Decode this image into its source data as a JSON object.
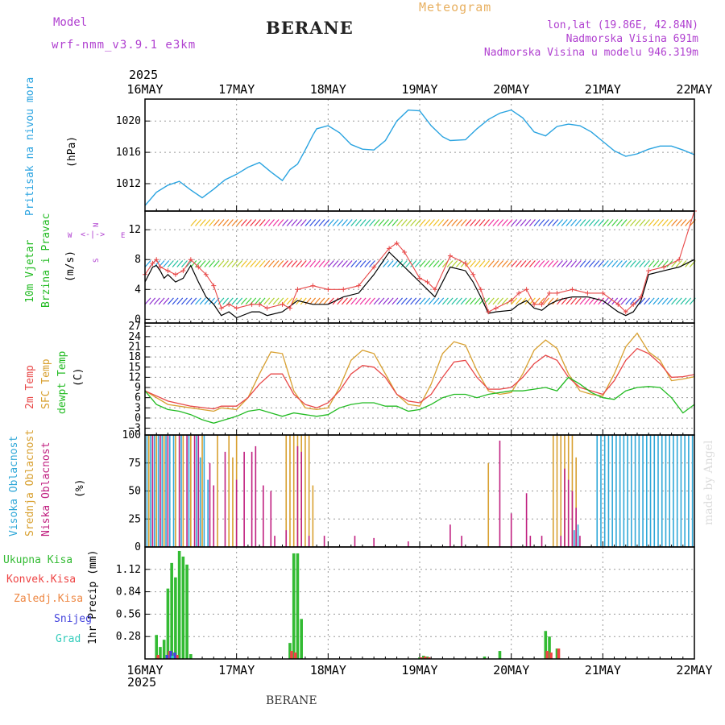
{
  "header": {
    "model_label": "Model",
    "model_name": "wrf-nmm_v3.9.1 e3km",
    "station": "BERANE",
    "meteogram": "Meteogram",
    "lonlat": "lon,lat (19.86E, 42.84N)",
    "altitude": "Nadmorska Visina 691m",
    "model_altitude": "Nadmorska Visina u modelu 946.319m",
    "year": "2025",
    "watermark": "made by Angel",
    "footer_station": "BERANE"
  },
  "colors": {
    "pressure": "#29a3e0",
    "wind_label": "#22bb22",
    "purple": "#b040d0",
    "temp2m": "#e84848",
    "sfc": "#d8a030",
    "dew": "#22bb22",
    "high": "#30a8d8",
    "mid": "#d8a030",
    "low": "#c02080",
    "precip_total": "#33bb33",
    "precip_conv": "#ee4444",
    "precip_frozen": "#ee8844",
    "precip_snow": "#4444dd",
    "precip_hail": "#33ccbb"
  },
  "x_axis": {
    "days": [
      "16MAY",
      "17MAY",
      "18MAY",
      "19MAY",
      "20MAY",
      "21MAY",
      "22MAY"
    ],
    "range_hours": [
      0,
      144
    ]
  },
  "panels": {
    "pressure": {
      "label": "Pritisak na nivou mora",
      "unit": "(hPa)"
    },
    "wind": {
      "label1": "10m Vjetar",
      "label2": "Brzina i Pravac",
      "unit": "(m/s)",
      "compass_n": "N",
      "compass_w": "W",
      "compass_e": "E",
      "compass_s": "S"
    },
    "temp": {
      "label_2m": "2m Temp",
      "label_sfc": "SFC Temp",
      "label_dew": "dewpt Temp",
      "unit": "(C)"
    },
    "cloud": {
      "label_high": "Visoka Oblacnost",
      "label_mid": "Srednja Oblacnost",
      "label_low": "Niska Oblacnost",
      "unit": "(%)"
    },
    "precip": {
      "legend": [
        "Ukupna Kisa",
        "Konvek.Kisa",
        "Zaledj.Kisa",
        "Snijeg",
        "Grad"
      ],
      "unit": "1hr Precip (mm)"
    }
  },
  "chart_data": [
    {
      "type": "line",
      "title": "Pritisak na nivou mora",
      "ylabel": "(hPa)",
      "ylim": [
        1008.5,
        1022.8
      ],
      "yticks": [
        1012,
        1016,
        1020
      ],
      "series": [
        {
          "name": "MSLP",
          "x": [
            0,
            3,
            6,
            9,
            12,
            15,
            18,
            21,
            24,
            27,
            30,
            33,
            36,
            38,
            40,
            42,
            44,
            45,
            48,
            51,
            54,
            57,
            60,
            63,
            66,
            69,
            72,
            75,
            78,
            80,
            84,
            87,
            90,
            93,
            96,
            99,
            102,
            105,
            108,
            111,
            114,
            117,
            120,
            123,
            126,
            129,
            132,
            135,
            138,
            141,
            144
          ],
          "values": [
            1009.2,
            1010.9,
            1011.8,
            1012.3,
            1011.2,
            1010.2,
            1011.3,
            1012.5,
            1013.2,
            1014.1,
            1014.7,
            1013.5,
            1012.4,
            1013.8,
            1014.5,
            1016.3,
            1018.2,
            1019.0,
            1019.4,
            1018.5,
            1017.0,
            1016.4,
            1016.3,
            1017.5,
            1020.0,
            1021.4,
            1021.3,
            1019.4,
            1018.0,
            1017.5,
            1017.6,
            1019.0,
            1020.2,
            1021.0,
            1021.4,
            1020.4,
            1018.6,
            1018.1,
            1019.3,
            1019.6,
            1019.4,
            1018.6,
            1017.4,
            1016.2,
            1015.5,
            1015.8,
            1016.4,
            1016.8,
            1016.8,
            1016.3,
            1015.7
          ]
        }
      ]
    },
    {
      "type": "line",
      "title": "10m Vjetar Brzina i Pravac",
      "ylabel": "(m/s)",
      "ylim": [
        -0.5,
        14.5
      ],
      "yticks": [
        0,
        4,
        8,
        12
      ],
      "series": [
        {
          "name": "Wind speed (black)",
          "x": [
            0,
            2,
            3,
            4,
            5,
            6,
            8,
            10,
            12,
            14,
            16,
            18,
            20,
            22,
            24,
            28,
            30,
            32,
            36,
            40,
            44,
            48,
            52,
            56,
            60,
            64,
            66,
            68,
            72,
            74,
            76,
            80,
            84,
            86,
            88,
            90,
            92,
            96,
            98,
            100,
            102,
            104,
            106,
            108,
            110,
            112,
            116,
            120,
            124,
            126,
            128,
            130,
            132,
            136,
            140,
            144
          ],
          "values": [
            5,
            7,
            7.2,
            6.5,
            5.5,
            6,
            5,
            5.5,
            7.2,
            5,
            3,
            2,
            0.5,
            1,
            0.2,
            1,
            1,
            0.5,
            1,
            2.5,
            2,
            2,
            3,
            3.5,
            6,
            9,
            8,
            7,
            5,
            4,
            3,
            7,
            6.5,
            5,
            3,
            0.8,
            1,
            1.2,
            2,
            2.5,
            1.5,
            1.2,
            2,
            2.5,
            2.8,
            3,
            3,
            2.5,
            1,
            0.5,
            1,
            2.5,
            6,
            6.5,
            7,
            8
          ]
        },
        {
          "name": "Gust (red)",
          "x": [
            0,
            2,
            3,
            4,
            6,
            8,
            10,
            12,
            14,
            16,
            18,
            20,
            22,
            24,
            28,
            30,
            32,
            36,
            38,
            40,
            44,
            48,
            52,
            56,
            60,
            64,
            66,
            68,
            72,
            74,
            76,
            80,
            84,
            86,
            88,
            90,
            92,
            96,
            98,
            100,
            102,
            104,
            106,
            108,
            112,
            116,
            120,
            124,
            126,
            128,
            130,
            132,
            136,
            140,
            144
          ],
          "values": [
            6,
            7.5,
            8,
            7,
            6.5,
            6,
            6.5,
            8,
            7,
            6,
            4.5,
            1.5,
            2,
            1.5,
            2,
            2,
            1.5,
            2,
            1.5,
            4,
            4.5,
            4,
            4,
            4.5,
            7,
            9.5,
            10.2,
            9,
            5.5,
            5,
            4,
            8.5,
            7.5,
            6,
            4,
            1,
            1.5,
            2.5,
            3.5,
            4,
            2,
            2,
            3.5,
            3.5,
            4,
            3.5,
            3.5,
            2,
            1,
            2,
            3,
            6.5,
            7,
            8,
            14.5
          ]
        }
      ]
    },
    {
      "type": "line",
      "title": "2m Temp / SFC Temp / dewpt Temp",
      "ylabel": "(C)",
      "ylim": [
        -5,
        28
      ],
      "yticks": [
        -3,
        0,
        3,
        6,
        9,
        12,
        15,
        18,
        21,
        24,
        27
      ],
      "series": [
        {
          "name": "2m Temp",
          "x": [
            0,
            6,
            12,
            18,
            20,
            24,
            27,
            30,
            33,
            36,
            39,
            42,
            45,
            48,
            51,
            54,
            57,
            60,
            63,
            66,
            69,
            72,
            75,
            78,
            81,
            84,
            87,
            90,
            93,
            96,
            99,
            102,
            105,
            108,
            111,
            114,
            117,
            120,
            123,
            126,
            129,
            132,
            135,
            138,
            141,
            144
          ],
          "values": [
            8,
            5,
            3.5,
            2.7,
            3.5,
            3.5,
            6,
            10,
            13,
            13,
            7,
            4,
            3,
            4.5,
            8,
            13,
            15.5,
            15,
            12,
            7,
            5,
            4.5,
            7,
            12,
            16.5,
            17,
            12,
            8.5,
            8.5,
            9,
            12,
            16,
            18.5,
            17,
            12,
            9,
            8,
            7,
            11,
            17,
            20.5,
            19,
            16,
            12,
            12.2,
            12.8
          ]
        },
        {
          "name": "SFC Temp",
          "x": [
            0,
            6,
            12,
            18,
            20,
            24,
            27,
            30,
            33,
            36,
            39,
            42,
            45,
            48,
            51,
            54,
            57,
            60,
            63,
            66,
            69,
            72,
            75,
            78,
            81,
            84,
            87,
            90,
            93,
            96,
            99,
            102,
            105,
            108,
            111,
            114,
            117,
            120,
            123,
            126,
            129,
            132,
            135,
            138,
            141,
            144
          ],
          "values": [
            8,
            4,
            3,
            2,
            3,
            2.5,
            6,
            13,
            19.5,
            19,
            8,
            3,
            2.5,
            3,
            9,
            17,
            20,
            19,
            13,
            7,
            4,
            3.5,
            10,
            19,
            22.5,
            21.5,
            14,
            8,
            7,
            7.5,
            13,
            20,
            23,
            20.5,
            13,
            8,
            7,
            6.5,
            13,
            21,
            25,
            19.5,
            17,
            11,
            11.5,
            12.2
          ]
        },
        {
          "name": "dewpt Temp",
          "x": [
            0,
            3,
            6,
            9,
            12,
            15,
            18,
            21,
            24,
            27,
            30,
            33,
            36,
            39,
            42,
            45,
            48,
            51,
            54,
            57,
            60,
            63,
            66,
            69,
            72,
            75,
            78,
            81,
            84,
            87,
            90,
            93,
            96,
            99,
            102,
            105,
            108,
            111,
            114,
            117,
            120,
            123,
            126,
            129,
            132,
            135,
            138,
            141,
            144
          ],
          "values": [
            8,
            4,
            2.5,
            2,
            1,
            -0.5,
            -1.5,
            -0.5,
            0.5,
            2,
            2.5,
            1.5,
            0.5,
            1.5,
            1,
            0.5,
            1,
            3,
            4,
            4.5,
            4.5,
            3.5,
            3.5,
            2,
            2.5,
            4,
            6,
            7,
            7,
            6,
            7,
            7.5,
            8,
            8,
            8.5,
            9,
            8,
            12,
            10,
            7.5,
            6,
            5.5,
            8,
            9,
            9.3,
            9,
            6,
            1.5,
            4
          ]
        }
      ]
    },
    {
      "type": "bar",
      "title": "Visoka / Srednja / Niska Oblacnost",
      "ylabel": "(%)",
      "ylim": [
        0,
        100
      ],
      "yticks": [
        0,
        25,
        50,
        75,
        100
      ],
      "series": [
        {
          "name": "Visoka Oblacnost",
          "x": [
            0.5,
            1.5,
            2.5,
            3.5,
            4.5,
            5.5,
            6.5,
            7.5,
            9.5,
            11.5,
            13.5,
            14.5,
            15.5,
            16.5,
            112.5,
            113.5,
            118.5,
            119.5,
            120.5,
            121.5,
            122.5,
            123.5,
            124.5,
            125.5,
            126.5,
            127.5,
            128.5,
            129.5,
            130.5,
            131.5,
            132.5,
            133.5,
            134.5,
            135.5,
            136.5,
            137.5,
            138.5,
            139.5,
            140.5,
            141.5,
            142.5,
            143.5
          ],
          "values": [
            100,
            100,
            100,
            100,
            100,
            100,
            100,
            100,
            100,
            100,
            100,
            80,
            100,
            60,
            15,
            20,
            100,
            100,
            100,
            100,
            100,
            100,
            100,
            100,
            100,
            100,
            100,
            100,
            100,
            100,
            100,
            100,
            100,
            100,
            100,
            100,
            100,
            100,
            100,
            100,
            100,
            100
          ]
        },
        {
          "name": "Srednja Oblacnost",
          "x": [
            1,
            3,
            5,
            8,
            10,
            12,
            15,
            19,
            22,
            23,
            24,
            37,
            38,
            39,
            40,
            41,
            42,
            43,
            44,
            90,
            107,
            108,
            109,
            110,
            111,
            112,
            113
          ],
          "values": [
            100,
            100,
            100,
            100,
            100,
            100,
            100,
            100,
            100,
            80,
            100,
            100,
            100,
            100,
            100,
            100,
            100,
            100,
            55,
            75,
            100,
            100,
            100,
            100,
            100,
            100,
            80
          ]
        },
        {
          "name": "Niska Oblacnost",
          "x": [
            2,
            4,
            6,
            9,
            11,
            13,
            14,
            17,
            18,
            21,
            24,
            26,
            28,
            29,
            31,
            33,
            34,
            37,
            40,
            41,
            43,
            47,
            55,
            60,
            69,
            80,
            83,
            93,
            96,
            100,
            101,
            104,
            109,
            110,
            111,
            112,
            113,
            114
          ],
          "values": [
            100,
            100,
            100,
            100,
            100,
            100,
            100,
            75,
            55,
            85,
            60,
            85,
            85,
            90,
            55,
            50,
            10,
            15,
            90,
            85,
            10,
            10,
            10,
            8,
            5,
            20,
            10,
            95,
            30,
            48,
            10,
            10,
            10,
            70,
            60,
            50,
            35,
            10
          ]
        }
      ]
    },
    {
      "type": "bar",
      "title": "1hr Precip",
      "ylabel": "1hr Precip (mm)",
      "ylim": [
        0,
        1.4
      ],
      "yticks": [
        0.28,
        0.56,
        0.84,
        1.12
      ],
      "series": [
        {
          "name": "Ukupna Kisa",
          "x": [
            3,
            4,
            5,
            6,
            7,
            8,
            9,
            10,
            11,
            12,
            38,
            39,
            40,
            41,
            72,
            73,
            74,
            89,
            93,
            105,
            106,
            108
          ],
          "values": [
            0.3,
            0.15,
            0.24,
            0.88,
            1.2,
            1.02,
            1.35,
            1.28,
            1.18,
            0.06,
            0.2,
            1.32,
            1.32,
            0.5,
            0.02,
            0.04,
            0.03,
            0.03,
            0.1,
            0.35,
            0.28,
            0.13
          ]
        },
        {
          "name": "Konvek.Kisa",
          "x": [
            3,
            6,
            8,
            38,
            39,
            72,
            73,
            74,
            105,
            106,
            108
          ],
          "values": [
            0.05,
            0.1,
            0.05,
            0.1,
            0.08,
            0.02,
            0.03,
            0.02,
            0.1,
            0.08,
            0.13
          ]
        },
        {
          "name": "Snijeg",
          "x": [
            6,
            7,
            8
          ],
          "values": [
            0.05,
            0.1,
            0.08
          ]
        },
        {
          "name": "Grad",
          "x": [
            7
          ],
          "values": [
            0.04
          ]
        }
      ]
    }
  ]
}
